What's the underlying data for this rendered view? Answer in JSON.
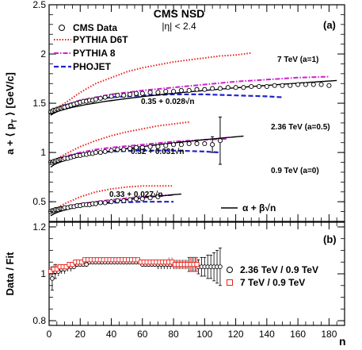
{
  "chart_data": [
    {
      "type": "scatter",
      "panel": "a",
      "panel_label": "(a)",
      "title": "CMS NSD",
      "subtitle": "|η| < 2.4",
      "ylabel": "a + ⟨ p_T ⟩ [GeV/c]",
      "ylabel_main": "a + ⟨ p",
      "ylabel_sub": "T",
      "ylabel_end": " ⟩ [GeV/c]",
      "xlabel": "n",
      "xlim": [
        0,
        190
      ],
      "ylim": [
        0.3,
        2.5
      ],
      "yticks": [
        "0.5",
        "1",
        "1.5",
        "2",
        "2.5"
      ],
      "ytick_values": [
        0.5,
        1.0,
        1.5,
        2.0,
        2.5
      ],
      "legend_position": "top-left",
      "legend": [
        {
          "label": "CMS Data",
          "style": "open-circle",
          "color": "#000000"
        },
        {
          "label": "PYTHIA D6T",
          "style": "dotted",
          "color": "#e8231c"
        },
        {
          "label": "PYTHIA 8",
          "style": "dash-dot",
          "color": "#d11fd1"
        },
        {
          "label": "PHOJET",
          "style": "dashed",
          "color": "#2222cc"
        }
      ],
      "fit_legend": "α + β√n",
      "energies": [
        {
          "label": "7 TeV (a=1)",
          "fit_label": "0.35 + 0.028√n",
          "offset": 1,
          "fit": {
            "alpha": 0.35,
            "beta": 0.028,
            "n_max": 185
          },
          "data_points": {
            "n": [
              1,
              2,
              3,
              4,
              5,
              6,
              7,
              8,
              9,
              10,
              12,
              14,
              16,
              18,
              20,
              22,
              24,
              26,
              28,
              30,
              33,
              36,
              40,
              44,
              48,
              52,
              56,
              60,
              65,
              70,
              75,
              80,
              85,
              90,
              95,
              100,
              105,
              110,
              115,
              120,
              125,
              130,
              135,
              140,
              145,
              150,
              155,
              160,
              165,
              170,
              175,
              180
            ],
            "y": [
              1.41,
              1.42,
              1.43,
              1.43,
              1.44,
              1.44,
              1.45,
              1.45,
              1.46,
              1.46,
              1.47,
              1.48,
              1.49,
              1.5,
              1.51,
              1.52,
              1.52,
              1.53,
              1.53,
              1.54,
              1.55,
              1.56,
              1.57,
              1.58,
              1.58,
              1.59,
              1.6,
              1.6,
              1.61,
              1.61,
              1.62,
              1.62,
              1.63,
              1.63,
              1.64,
              1.64,
              1.65,
              1.65,
              1.66,
              1.66,
              1.66,
              1.67,
              1.67,
              1.67,
              1.68,
              1.68,
              1.68,
              1.69,
              1.69,
              1.69,
              1.69,
              1.68
            ]
          },
          "pythia_d6t": {
            "n": [
              1,
              10,
              20,
              30,
              40,
              50,
              60,
              70,
              80,
              90,
              100,
              110,
              120,
              130
            ],
            "y": [
              1.41,
              1.5,
              1.61,
              1.7,
              1.76,
              1.82,
              1.86,
              1.89,
              1.92,
              1.94,
              1.96,
              1.98,
              1.99,
              2.01
            ]
          },
          "pythia_8": {
            "n": [
              1,
              10,
              20,
              30,
              40,
              60,
              80,
              100,
              120,
              140,
              160,
              180
            ],
            "y": [
              1.42,
              1.48,
              1.53,
              1.56,
              1.59,
              1.63,
              1.66,
              1.69,
              1.72,
              1.74,
              1.76,
              1.77
            ]
          },
          "phojet": {
            "n": [
              1,
              10,
              20,
              30,
              40,
              60,
              80,
              100,
              120,
              140,
              150
            ],
            "y": [
              1.42,
              1.48,
              1.52,
              1.54,
              1.56,
              1.58,
              1.59,
              1.59,
              1.58,
              1.57,
              1.56
            ]
          }
        },
        {
          "label": "2.36 TeV (a=0.5)",
          "fit_label": "0.32 + 0.031√n",
          "offset": 0.5,
          "fit": {
            "alpha": 0.32,
            "beta": 0.031,
            "n_max": 125
          },
          "data_points": {
            "n": [
              1,
              2,
              3,
              4,
              5,
              6,
              7,
              8,
              9,
              10,
              12,
              14,
              16,
              18,
              20,
              22,
              24,
              26,
              28,
              30,
              33,
              36,
              40,
              44,
              48,
              52,
              56,
              60,
              65,
              70,
              75,
              80,
              85,
              90,
              95,
              100,
              105,
              110
            ],
            "y": [
              0.9,
              0.9,
              0.91,
              0.91,
              0.92,
              0.92,
              0.93,
              0.93,
              0.93,
              0.94,
              0.94,
              0.95,
              0.96,
              0.97,
              0.97,
              0.98,
              0.98,
              0.99,
              0.99,
              1.0,
              1.0,
              1.01,
              1.02,
              1.03,
              1.03,
              1.04,
              1.05,
              1.05,
              1.06,
              1.06,
              1.07,
              1.08,
              1.08,
              1.09,
              1.09,
              1.09,
              1.08,
              1.12
            ]
          },
          "data_error_points": {
            "n": [
              105,
              110
            ],
            "y": [
              1.08,
              1.12
            ],
            "err": [
              0.08,
              0.24
            ]
          },
          "pythia_d6t": {
            "n": [
              1,
              10,
              20,
              30,
              40,
              50,
              60,
              70,
              80,
              90
            ],
            "y": [
              0.9,
              0.98,
              1.06,
              1.12,
              1.17,
              1.21,
              1.24,
              1.27,
              1.29,
              1.31
            ]
          },
          "pythia_8": {
            "n": [
              1,
              10,
              20,
              30,
              40,
              60,
              80,
              100,
              115
            ],
            "y": [
              0.91,
              0.96,
              1.0,
              1.03,
              1.05,
              1.08,
              1.11,
              1.13,
              1.14
            ]
          },
          "phojet": {
            "n": [
              1,
              10,
              20,
              30,
              40,
              60,
              80,
              100,
              110
            ],
            "y": [
              0.91,
              0.95,
              0.98,
              1.0,
              1.01,
              1.02,
              1.02,
              1.01,
              1.0
            ]
          }
        },
        {
          "label": "0.9 TeV (a=0)",
          "fit_label": "0.33 + 0.027√n",
          "offset": 0,
          "fit": {
            "alpha": 0.33,
            "beta": 0.027,
            "n_max": 85
          },
          "data_points": {
            "n": [
              1,
              2,
              3,
              4,
              5,
              6,
              7,
              8,
              9,
              10,
              12,
              14,
              16,
              18,
              20,
              22,
              24,
              26,
              28,
              30,
              33,
              36,
              40,
              44,
              48,
              52,
              56,
              60,
              65,
              70
            ],
            "y": [
              0.4,
              0.41,
              0.41,
              0.42,
              0.42,
              0.42,
              0.43,
              0.43,
              0.43,
              0.44,
              0.44,
              0.45,
              0.45,
              0.46,
              0.46,
              0.47,
              0.47,
              0.47,
              0.48,
              0.48,
              0.49,
              0.49,
              0.5,
              0.51,
              0.51,
              0.52,
              0.53,
              0.53,
              0.54,
              0.55
            ]
          },
          "pythia_d6t": {
            "n": [
              1,
              10,
              20,
              30,
              40,
              50,
              60,
              70,
              80
            ],
            "y": [
              0.4,
              0.48,
              0.55,
              0.6,
              0.63,
              0.65,
              0.66,
              0.66,
              0.66
            ]
          },
          "pythia_8": {
            "n": [
              1,
              10,
              20,
              30,
              40,
              60,
              80
            ],
            "y": [
              0.41,
              0.45,
              0.48,
              0.5,
              0.52,
              0.55,
              0.57
            ]
          },
          "phojet": {
            "n": [
              1,
              10,
              20,
              30,
              40,
              60,
              80
            ],
            "y": [
              0.41,
              0.44,
              0.46,
              0.48,
              0.49,
              0.5,
              0.5
            ]
          }
        }
      ]
    },
    {
      "type": "scatter",
      "panel": "b",
      "panel_label": "(b)",
      "ylabel": "Data / Fit",
      "xlabel": "n",
      "xlim": [
        0,
        190
      ],
      "ylim": [
        0.78,
        1.22
      ],
      "xticks": [
        "0",
        "20",
        "40",
        "60",
        "80",
        "100",
        "120",
        "140",
        "160",
        "180"
      ],
      "xtick_values": [
        0,
        20,
        40,
        60,
        80,
        100,
        120,
        140,
        160,
        180
      ],
      "yticks": [
        "0.8",
        "1",
        "1.2"
      ],
      "ytick_values": [
        0.8,
        1.0,
        1.2
      ],
      "legend_position": "right",
      "series": [
        {
          "name": "2.36 TeV / 0.9 TeV",
          "marker": "open-circle",
          "color": "#000000",
          "n": [
            2,
            4,
            6,
            8,
            10,
            12,
            14,
            16,
            18,
            20,
            22,
            24,
            26,
            28,
            30,
            32,
            34,
            36,
            38,
            40,
            42,
            44,
            46,
            48,
            50,
            52,
            54,
            56,
            58,
            60,
            62,
            64,
            66,
            68,
            70,
            72,
            74,
            76,
            78,
            80,
            82,
            84,
            86,
            88,
            90,
            92,
            94,
            96,
            98,
            100,
            102,
            104,
            106,
            108,
            110
          ],
          "y": [
            0.98,
            1.01,
            1.01,
            1.02,
            1.02,
            1.03,
            1.03,
            1.03,
            1.04,
            1.04,
            1.04,
            1.04,
            1.05,
            1.05,
            1.05,
            1.05,
            1.05,
            1.05,
            1.05,
            1.05,
            1.05,
            1.05,
            1.05,
            1.05,
            1.05,
            1.05,
            1.05,
            1.05,
            1.05,
            1.04,
            1.04,
            1.04,
            1.04,
            1.04,
            1.04,
            1.04,
            1.04,
            1.04,
            1.04,
            1.04,
            1.04,
            1.04,
            1.04,
            1.04,
            1.04,
            1.04,
            1.04,
            1.03,
            1.03,
            1.03,
            1.03,
            1.03,
            1.03,
            1.03,
            1.03
          ],
          "err": [
            0.05,
            0.03,
            0.02,
            0.02,
            0.02,
            0.02,
            0.02,
            0.01,
            0.01,
            0.01,
            0.01,
            0.01,
            0.01,
            0.01,
            0.01,
            0.01,
            0.01,
            0.01,
            0.01,
            0.01,
            0.01,
            0.01,
            0.01,
            0.01,
            0.01,
            0.01,
            0.01,
            0.01,
            0.01,
            0.01,
            0.01,
            0.01,
            0.01,
            0.01,
            0.02,
            0.02,
            0.02,
            0.02,
            0.02,
            0.02,
            0.02,
            0.02,
            0.02,
            0.02,
            0.03,
            0.03,
            0.03,
            0.03,
            0.04,
            0.04,
            0.05,
            0.05,
            0.06,
            0.07,
            0.08
          ]
        },
        {
          "name": "7 TeV / 0.9 TeV",
          "marker": "open-square",
          "color": "#e8231c",
          "n": [
            1,
            3,
            5,
            7,
            9,
            11,
            13,
            15,
            17,
            19,
            21,
            23,
            25,
            27,
            29,
            31,
            33,
            35,
            37,
            39,
            41,
            43,
            45,
            47,
            49,
            51,
            53,
            55,
            57,
            59,
            61,
            63,
            65,
            67,
            69,
            71,
            73,
            75,
            77,
            79,
            81,
            83,
            85,
            87,
            89,
            91,
            93,
            95
          ],
          "y": [
            1.01,
            1.02,
            1.02,
            1.03,
            1.03,
            1.03,
            1.04,
            1.04,
            1.05,
            1.05,
            1.05,
            1.06,
            1.06,
            1.06,
            1.06,
            1.06,
            1.06,
            1.06,
            1.06,
            1.06,
            1.06,
            1.06,
            1.06,
            1.06,
            1.06,
            1.06,
            1.06,
            1.06,
            1.06,
            1.05,
            1.05,
            1.05,
            1.05,
            1.05,
            1.05,
            1.05,
            1.05,
            1.05,
            1.05,
            1.05,
            1.04,
            1.04,
            1.04,
            1.04,
            1.04,
            1.04,
            1.04,
            1.04
          ],
          "err": [
            0.02,
            0.02,
            0.02,
            0.01,
            0.01,
            0.01,
            0.01,
            0.01,
            0.01,
            0.01,
            0.01,
            0.01,
            0.01,
            0.01,
            0.01,
            0.01,
            0.01,
            0.01,
            0.01,
            0.01,
            0.01,
            0.01,
            0.01,
            0.01,
            0.01,
            0.01,
            0.01,
            0.01,
            0.01,
            0.01,
            0.01,
            0.01,
            0.01,
            0.01,
            0.01,
            0.01,
            0.01,
            0.01,
            0.02,
            0.02,
            0.02,
            0.02,
            0.02,
            0.02,
            0.02,
            0.03,
            0.03,
            0.03
          ]
        }
      ]
    }
  ]
}
